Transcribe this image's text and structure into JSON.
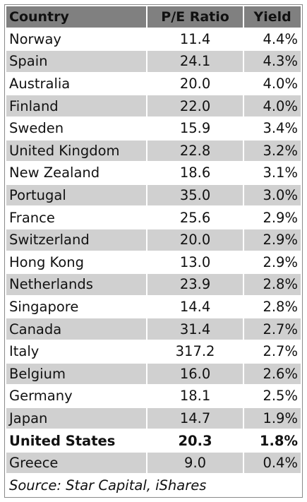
{
  "chart_data": {
    "type": "table",
    "columns": [
      "Country",
      "P/E Ratio",
      "Yield"
    ],
    "rows": [
      {
        "country": "Norway",
        "pe": "11.4",
        "yield": "4.4%"
      },
      {
        "country": "Spain",
        "pe": "24.1",
        "yield": "4.3%"
      },
      {
        "country": "Australia",
        "pe": "20.0",
        "yield": "4.0%"
      },
      {
        "country": "Finland",
        "pe": "22.0",
        "yield": "4.0%"
      },
      {
        "country": "Sweden",
        "pe": "15.9",
        "yield": "3.4%"
      },
      {
        "country": "United Kingdom",
        "pe": "22.8",
        "yield": "3.2%"
      },
      {
        "country": "New Zealand",
        "pe": "18.6",
        "yield": "3.1%"
      },
      {
        "country": "Portugal",
        "pe": "35.0",
        "yield": "3.0%"
      },
      {
        "country": "France",
        "pe": "25.6",
        "yield": "2.9%"
      },
      {
        "country": "Switzerland",
        "pe": "20.0",
        "yield": "2.9%"
      },
      {
        "country": "Hong Kong",
        "pe": "13.0",
        "yield": "2.9%"
      },
      {
        "country": "Netherlands",
        "pe": "23.9",
        "yield": "2.8%"
      },
      {
        "country": "Singapore",
        "pe": "14.4",
        "yield": "2.8%"
      },
      {
        "country": "Canada",
        "pe": "31.4",
        "yield": "2.7%"
      },
      {
        "country": "Italy",
        "pe": "317.2",
        "yield": "2.7%"
      },
      {
        "country": "Belgium",
        "pe": "16.0",
        "yield": "2.6%"
      },
      {
        "country": "Germany",
        "pe": "18.1",
        "yield": "2.5%"
      },
      {
        "country": "Japan",
        "pe": "14.7",
        "yield": "1.9%"
      },
      {
        "country": "United States",
        "pe": "20.3",
        "yield": "1.8%",
        "bold": true
      },
      {
        "country": "Greece",
        "pe": "9.0",
        "yield": "0.4%"
      }
    ],
    "source": "Source: Star Capital, iShares",
    "colors": {
      "header": "#808080",
      "stripe": "#d0d0d0",
      "row": "#ffffff"
    }
  }
}
